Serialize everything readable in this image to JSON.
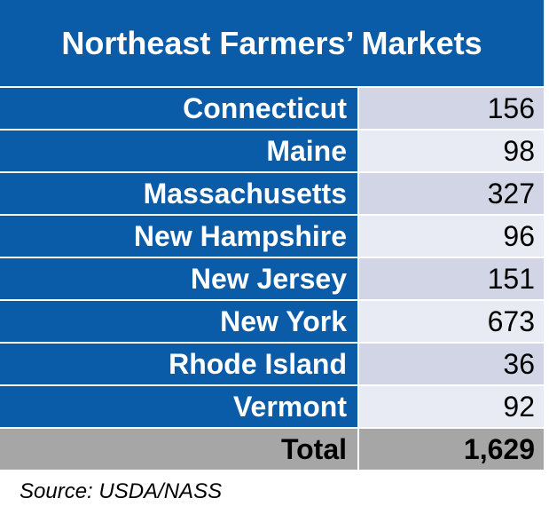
{
  "header": {
    "title": "Northeast Farmers’ Markets"
  },
  "table": {
    "rows": [
      [
        "Connecticut",
        "156"
      ],
      [
        "Maine",
        "98"
      ],
      [
        "Massachusetts",
        "327"
      ],
      [
        "New Hampshire",
        "96"
      ],
      [
        "New Jersey",
        "151"
      ],
      [
        "New York",
        "673"
      ],
      [
        "Rhode Island",
        "36"
      ],
      [
        "Vermont",
        "92"
      ]
    ],
    "total": [
      "Total",
      "1,629"
    ]
  },
  "footer": {
    "source": "Source: USDA/NASS"
  }
}
